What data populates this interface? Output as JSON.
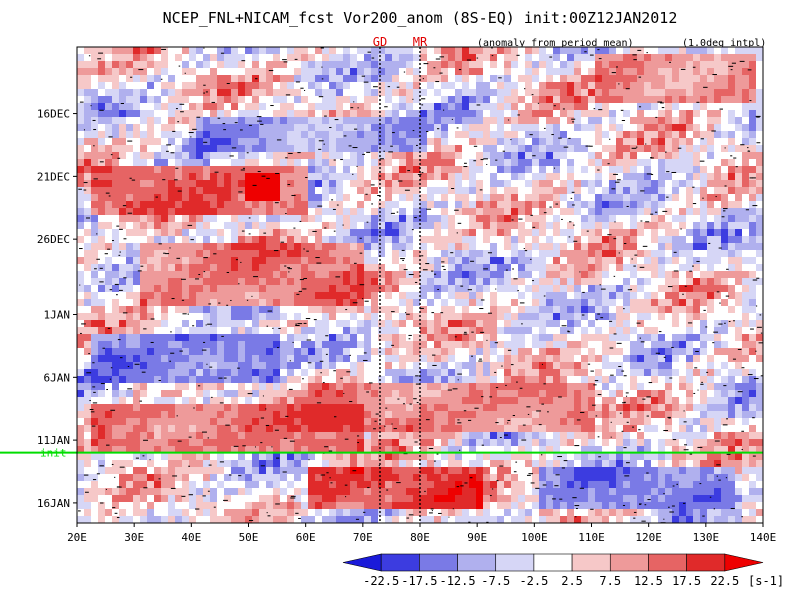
{
  "chart_data": {
    "type": "heatmap",
    "title": "NCEP_FNL+NICAM_fcst Vor200_anom (8S-EQ) init:00Z12JAN2012",
    "annotation_left": "(anomaly from period mean)",
    "annotation_right": "(1.0deg intpl)",
    "x": {
      "range": [
        20,
        140
      ],
      "ticks": [
        20,
        30,
        40,
        50,
        60,
        70,
        80,
        90,
        100,
        110,
        120,
        130,
        140
      ],
      "tick_labels": [
        "20E",
        "30E",
        "40E",
        "50E",
        "60E",
        "70E",
        "80E",
        "90E",
        "100E",
        "110E",
        "120E",
        "130E",
        "140E"
      ]
    },
    "y": {
      "range_days_from_16DEC": [
        -5.3,
        32.6
      ],
      "ticks": [
        0,
        5,
        10,
        16,
        21,
        26,
        31
      ],
      "tick_labels": [
        "16DEC",
        "21DEC",
        "26DEC",
        "1JAN",
        "6JAN",
        "11JAN",
        "16JAN"
      ],
      "inverted": true
    },
    "init_line": {
      "label": "init",
      "date": "12JAN2012",
      "color": "#00dd00"
    },
    "longitude_markers": [
      {
        "label": "GD",
        "lon": 73
      },
      {
        "label": "MR",
        "lon": 80
      }
    ],
    "colorbar": {
      "levels": [
        -22.5,
        -17.5,
        -12.5,
        -7.5,
        -2.5,
        2.5,
        7.5,
        12.5,
        17.5,
        22.5
      ],
      "tick_labels": [
        "-22.5",
        "-17.5",
        "-12.5",
        "-7.5",
        "-2.5",
        "2.5",
        "7.5",
        "12.5",
        "17.5",
        "22.5"
      ],
      "colors": [
        "#1a1ad9",
        "#3c3ce0",
        "#7a7ae6",
        "#b0b0ee",
        "#d6d6f6",
        "#ffffff",
        "#f6c8c8",
        "#ee9a9a",
        "#e66464",
        "#e02a2a",
        "#ee0000"
      ],
      "unit": "[s-1]"
    },
    "features": [
      {
        "lon_start": 22,
        "lon_end": 60,
        "day_start": 4,
        "day_end": 8,
        "value": 15
      },
      {
        "lon_start": 49,
        "lon_end": 55,
        "day_start": 4.5,
        "day_end": 6.5,
        "value": 25
      },
      {
        "lon_start": 40,
        "lon_end": 80,
        "day_start": 0,
        "day_end": 3,
        "value": -12
      },
      {
        "lon_start": 30,
        "lon_end": 70,
        "day_start": 10,
        "day_end": 15,
        "value": 13
      },
      {
        "lon_start": 22,
        "lon_end": 55,
        "day_start": 17,
        "day_end": 21,
        "value": -15
      },
      {
        "lon_start": 60,
        "lon_end": 110,
        "day_start": 21,
        "day_end": 25,
        "value": 12
      },
      {
        "lon_start": 22,
        "lon_end": 70,
        "day_start": 23,
        "day_end": 27,
        "value": 14
      },
      {
        "lon_start": 60,
        "lon_end": 90,
        "day_start": 28,
        "day_end": 31,
        "value": 18
      },
      {
        "lon_start": 100,
        "lon_end": 135,
        "day_start": 28,
        "day_end": 31,
        "value": -13
      },
      {
        "lon_start": 110,
        "lon_end": 138,
        "day_start": -5,
        "day_end": -1,
        "value": 12
      }
    ]
  }
}
